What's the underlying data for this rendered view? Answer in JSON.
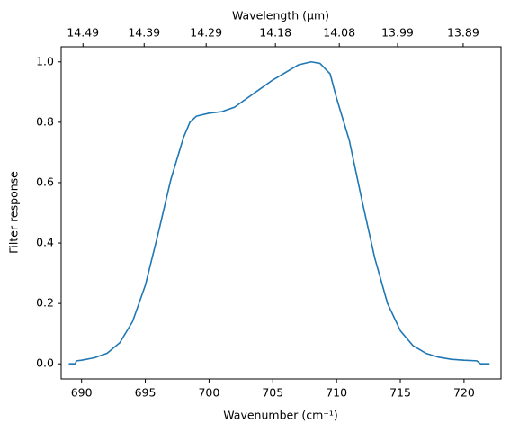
{
  "chart_data": {
    "type": "line",
    "xlabel": "Wavenumber (cm⁻¹)",
    "ylabel": "Filter response",
    "x2label": "Wavelength (μm)",
    "color": "#1f77b4",
    "x": [
      689,
      689.5,
      689.6,
      690,
      691,
      692,
      693,
      694,
      695,
      696,
      697,
      698,
      698.5,
      699,
      700,
      701,
      702,
      703,
      704,
      705,
      706,
      707,
      708,
      708.7,
      709.5,
      710,
      711,
      712,
      713,
      714,
      715,
      716,
      717,
      718,
      719,
      720,
      721,
      721.3,
      722
    ],
    "values": [
      0.0,
      0.0,
      0.01,
      0.012,
      0.02,
      0.035,
      0.07,
      0.14,
      0.26,
      0.43,
      0.61,
      0.75,
      0.8,
      0.82,
      0.83,
      0.835,
      0.85,
      0.88,
      0.91,
      0.94,
      0.965,
      0.99,
      1.0,
      0.995,
      0.96,
      0.88,
      0.74,
      0.54,
      0.35,
      0.2,
      0.11,
      0.06,
      0.035,
      0.022,
      0.015,
      0.012,
      0.01,
      0.0,
      0.0
    ],
    "xlim": [
      688.4,
      722.9
    ],
    "xticks": [
      690,
      695,
      700,
      705,
      710,
      715,
      720
    ],
    "ylim": [
      -0.05,
      1.05
    ],
    "yticks": [
      {
        "value": 0,
        "label": "0.0"
      },
      0.2,
      0.4,
      0.6,
      0.8,
      {
        "value": 1,
        "label": "1.0"
      }
    ],
    "x2lim": [
      14.526,
      13.833
    ],
    "x2ticks": [
      14.49,
      14.39,
      14.29,
      14.18,
      14.08,
      13.99,
      13.89
    ],
    "x2scale": "reciprocal"
  }
}
